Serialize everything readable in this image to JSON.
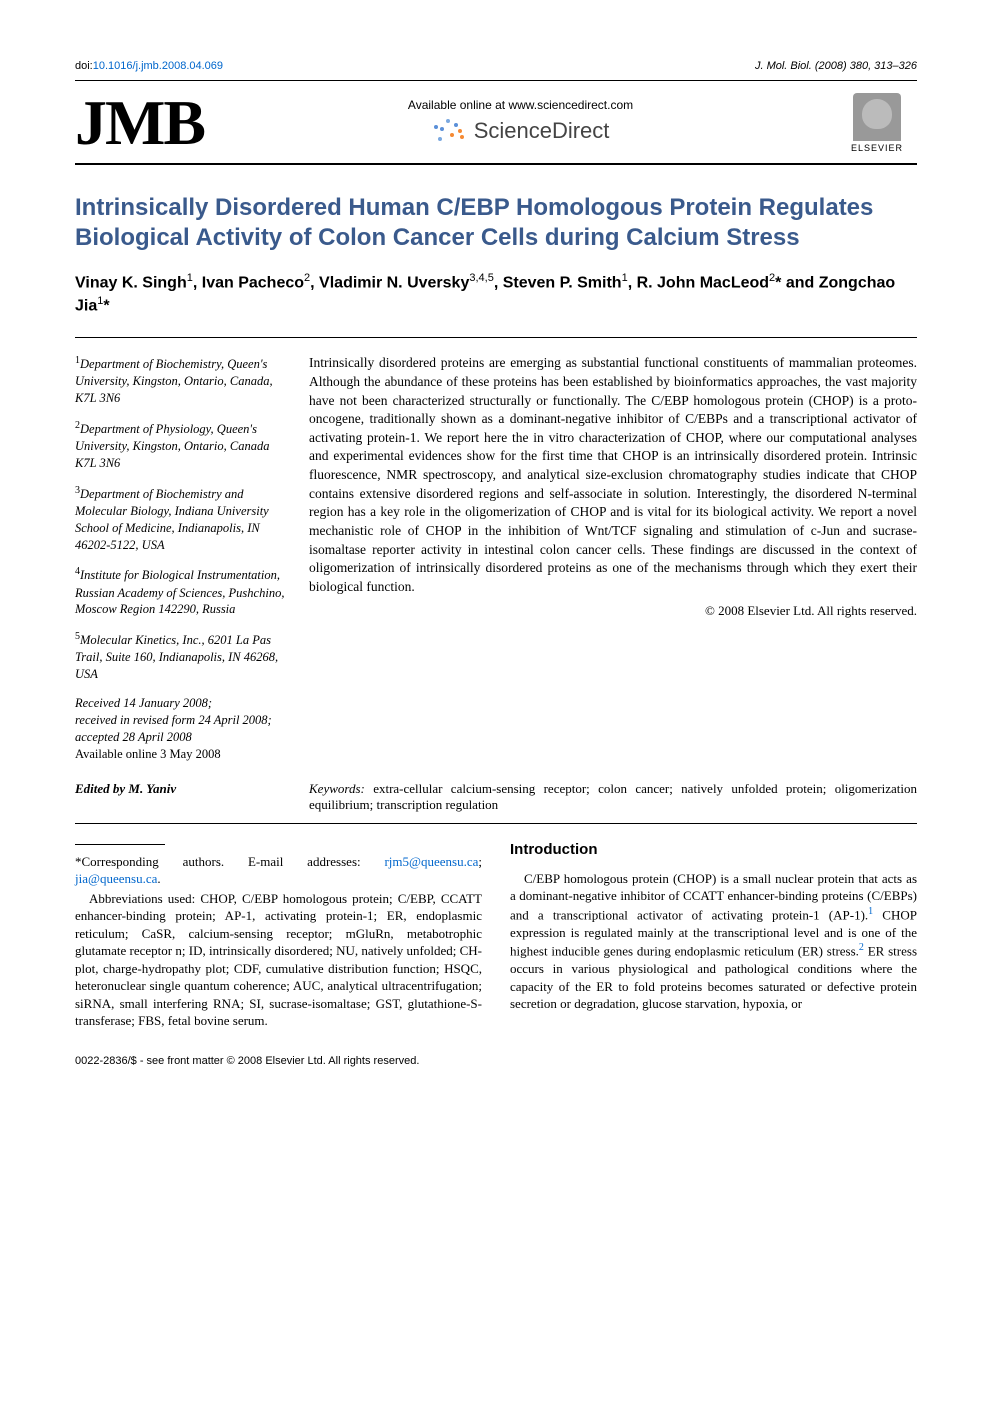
{
  "meta": {
    "doi_label": "doi:",
    "doi": "10.1016/j.jmb.2008.04.069",
    "journal_ref": "J. Mol. Biol. (2008) 380, 313–326"
  },
  "header": {
    "logo_text": "JMB",
    "available_online": "Available online at www.sciencedirect.com",
    "sciencedirect": "ScienceDirect",
    "publisher": "ELSEVIER",
    "sd_dot_colors": [
      "#5a8fd8",
      "#5a8fd8",
      "#7aa8e0",
      "#f58a33",
      "#f58a33",
      "#7aa8e0",
      "#5a8fd8",
      "#f58a33"
    ]
  },
  "article": {
    "title": "Intrinsically Disordered Human C/EBP Homologous Protein Regulates Biological Activity of Colon Cancer Cells during Calcium Stress",
    "authors_html": "Vinay K. Singh<sup>1</sup>, Ivan Pacheco<sup>2</sup>, Vladimir N. Uversky<sup>3,4,5</sup>, Steven P. Smith<sup>1</sup>, R. John MacLeod<sup>2</sup>* and Zongchao Jia<sup>1</sup>*"
  },
  "affiliations": [
    {
      "sup": "1",
      "text": "Department of Biochemistry, Queen's University, Kingston, Ontario, Canada, K7L 3N6"
    },
    {
      "sup": "2",
      "text": "Department of Physiology, Queen's University, Kingston, Ontario, Canada K7L 3N6"
    },
    {
      "sup": "3",
      "text": "Department of Biochemistry and Molecular Biology, Indiana University School of Medicine, Indianapolis, IN 46202-5122, USA"
    },
    {
      "sup": "4",
      "text": "Institute for Biological Instrumentation, Russian Academy of Sciences, Pushchino, Moscow Region 142290, Russia"
    },
    {
      "sup": "5",
      "text": "Molecular Kinetics, Inc., 6201 La Pas Trail, Suite 160, Indianapolis, IN 46268, USA"
    }
  ],
  "history": {
    "received": "Received 14 January 2008;",
    "revised": "received in revised form 24 April 2008;",
    "accepted": "accepted 28 April 2008",
    "available": "Available online 3 May 2008"
  },
  "abstract": "Intrinsically disordered proteins are emerging as substantial functional constituents of mammalian proteomes. Although the abundance of these proteins has been established by bioinformatics approaches, the vast majority have not been characterized structurally or functionally. The C/EBP homologous protein (CHOP) is a proto-oncogene, traditionally shown as a dominant-negative inhibitor of C/EBPs and a transcriptional activator of activating protein-1. We report here the in vitro characterization of CHOP, where our computational analyses and experimental evidences show for the first time that CHOP is an intrinsically disordered protein. Intrinsic fluorescence, NMR spectroscopy, and analytical size-exclusion chromatography studies indicate that CHOP contains extensive disordered regions and self-associate in solution. Interestingly, the disordered N-terminal region has a key role in the oligomerization of CHOP and is vital for its biological activity. We report a novel mechanistic role of CHOP in the inhibition of Wnt/TCF signaling and stimulation of c-Jun and sucrase-isomaltase reporter activity in intestinal colon cancer cells. These findings are discussed in the context of oligomerization of intrinsically disordered proteins as one of the mechanisms through which they exert their biological function.",
  "copyright": "© 2008 Elsevier Ltd. All rights reserved.",
  "edited_by": "Edited by M. Yaniv",
  "keywords": {
    "label": "Keywords:",
    "text": " extra-cellular calcium-sensing receptor; colon cancer; natively unfolded protein; oligomerization equilibrium; transcription regulation"
  },
  "footnotes": {
    "corresponding": "*Corresponding authors. E-mail addresses:",
    "email1": "rjm5@queensu.ca",
    "email_sep": "; ",
    "email2": "jia@queensu.ca",
    "email_period": ".",
    "abbrev": "Abbreviations used: CHOP, C/EBP homologous protein; C/EBP, CCATT enhancer-binding protein; AP-1, activating protein-1; ER, endoplasmic reticulum; CaSR, calcium-sensing receptor; mGluRn, metabotrophic glutamate receptor n; ID, intrinsically disordered; NU, natively unfolded; CH-plot, charge-hydropathy plot; CDF, cumulative distribution function; HSQC, heteronuclear single quantum coherence; AUC, analytical ultracentrifugation; siRNA, small interfering RNA; SI, sucrase-isomaltase; GST, glutathione-S-transferase; FBS, fetal bovine serum."
  },
  "intro": {
    "heading": "Introduction",
    "para1_a": "C/EBP homologous protein (CHOP) is a small nuclear protein that acts as a dominant-negative inhibitor of CCATT enhancer-binding proteins (C/EBPs) and a transcriptional activator of activating protein-1 (AP-1).",
    "ref1": "1",
    "para1_b": " CHOP expression is regulated mainly at the transcriptional level and is one of the highest inducible genes during endoplasmic reticulum (ER) stress.",
    "ref2": "2",
    "para1_c": " ER stress occurs in various physiological and pathological conditions where the capacity of the ER to fold proteins becomes saturated or defective protein secretion or degradation, glucose starvation, hypoxia, or"
  },
  "bottom": "0022-2836/$ - see front matter © 2008 Elsevier Ltd. All rights reserved.",
  "colors": {
    "title_color": "#3a5a8c",
    "link_color": "#0066cc"
  }
}
